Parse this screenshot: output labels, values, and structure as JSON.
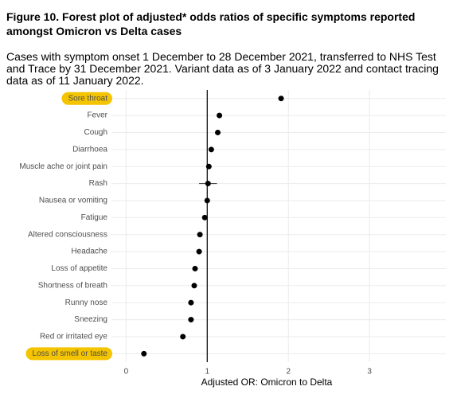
{
  "chart_data": {
    "type": "forest",
    "title": "Figure 10. Forest plot of adjusted* odds ratios of specific symptoms reported amongst Omicron vs Delta cases",
    "subtitle": "Cases with symptom onset 1 December to 28 December 2021, transferred to NHS Test and Trace by 31 December 2021. Variant data as of 3 January 2022 and contact tracing data as of 11 January 2022.",
    "x_label": "Adjusted OR: Omicron to Delta",
    "categories": [
      "Sore throat",
      "Fever",
      "Cough",
      "Diarrhoea",
      "Muscle ache or joint pain",
      "Rash",
      "Nausea or vomiting",
      "Fatigue",
      "Altered consciousness",
      "Headache",
      "Loss of appetite",
      "Shortness of breath",
      "Runny nose",
      "Sneezing",
      "Red or irritated eye",
      "Loss of smell or taste"
    ],
    "values": [
      1.91,
      1.15,
      1.13,
      1.05,
      1.02,
      1.01,
      1.0,
      0.97,
      0.91,
      0.9,
      0.85,
      0.84,
      0.8,
      0.8,
      0.7,
      0.22
    ],
    "ci_lower": [
      null,
      null,
      null,
      null,
      null,
      0.9,
      null,
      null,
      null,
      null,
      null,
      null,
      null,
      null,
      null,
      null
    ],
    "ci_upper": [
      null,
      null,
      null,
      null,
      null,
      1.12,
      null,
      null,
      null,
      null,
      null,
      null,
      null,
      null,
      null,
      null
    ],
    "highlighted": [
      true,
      false,
      false,
      false,
      false,
      false,
      false,
      false,
      false,
      false,
      false,
      false,
      false,
      false,
      false,
      true
    ],
    "highlight_color": "#f5c400",
    "color": "#000000",
    "reference_line": 1,
    "xlim": [
      -0.18,
      3.94
    ],
    "xticks": [
      0,
      1,
      2,
      3
    ],
    "grid": true
  }
}
